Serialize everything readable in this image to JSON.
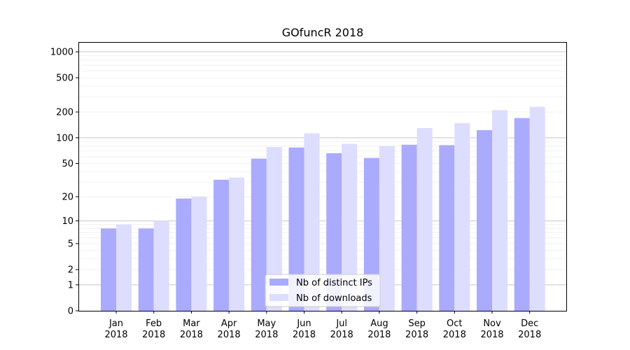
{
  "chart_data": {
    "type": "bar",
    "title": "GOfuncR 2018",
    "xlabel": "",
    "ylabel": "",
    "yscale": "log1p",
    "ylim": [
      0,
      1300
    ],
    "grid": true,
    "legend_position": "bottom-center",
    "categories": [
      [
        "Jan",
        "2018"
      ],
      [
        "Feb",
        "2018"
      ],
      [
        "Mar",
        "2018"
      ],
      [
        "Apr",
        "2018"
      ],
      [
        "May",
        "2018"
      ],
      [
        "Jun",
        "2018"
      ],
      [
        "Jul",
        "2018"
      ],
      [
        "Aug",
        "2018"
      ],
      [
        "Sep",
        "2018"
      ],
      [
        "Oct",
        "2018"
      ],
      [
        "Nov",
        "2018"
      ],
      [
        "Dec",
        "2018"
      ]
    ],
    "yticks": [
      {
        "value": 0,
        "label": "0"
      },
      {
        "value": 1,
        "label": "1"
      },
      {
        "value": 2,
        "label": "2"
      },
      {
        "value": 5,
        "label": "5"
      },
      {
        "value": 10,
        "label": "10"
      },
      {
        "value": 20,
        "label": "20"
      },
      {
        "value": 50,
        "label": "50"
      },
      {
        "value": 100,
        "label": "100"
      },
      {
        "value": 200,
        "label": "200"
      },
      {
        "value": 500,
        "label": "500"
      },
      {
        "value": 1000,
        "label": "1000"
      }
    ],
    "series": [
      {
        "name": "Nb of distinct IPs",
        "color": "#aaaaff",
        "values": [
          8,
          8,
          19,
          32,
          57,
          77,
          66,
          58,
          83,
          82,
          123,
          170
        ]
      },
      {
        "name": "Nb of downloads",
        "color": "#ddddff",
        "values": [
          9,
          10,
          20,
          34,
          78,
          113,
          85,
          80,
          130,
          148,
          210,
          230
        ]
      }
    ]
  }
}
